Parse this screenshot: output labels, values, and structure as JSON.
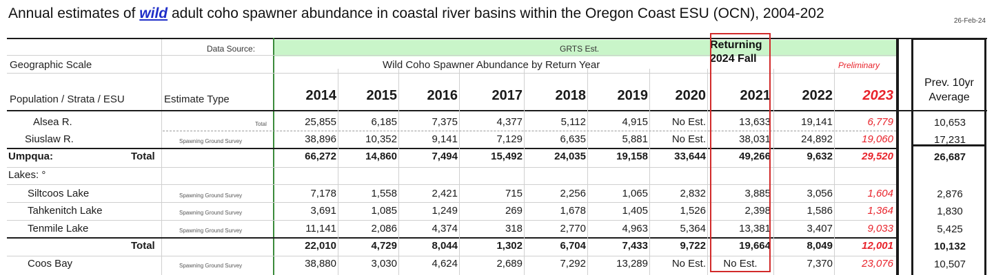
{
  "title": {
    "prefix": "Annual estimates of ",
    "wild": "wild",
    "rest": " adult coho spawner abundance in coastal river basins within the Oregon Coast ESU (OCN), 2004-202",
    "date": "26-Feb-24"
  },
  "header": {
    "data_source_label": "Data Source:",
    "grts": "GRTS Est.",
    "geographic_scale": "Geographic Scale",
    "abundance_label": "Wild Coho Spawner Abundance by Return Year",
    "returning_line1": "Returning",
    "returning_line2": "2024 Fall",
    "preliminary": "Preliminary",
    "population_label": "Population / Strata / ESU",
    "estimate_type": "Estimate Type",
    "avg_line1": "Prev. 10yr",
    "avg_line2": "Average",
    "years": [
      "2014",
      "2015",
      "2016",
      "2017",
      "2018",
      "2019",
      "2020",
      "2021",
      "2022",
      "2023"
    ]
  },
  "rows": [
    {
      "label": "Alsea R.",
      "source": "Total",
      "values": [
        "25,855",
        "6,185",
        "7,375",
        "4,377",
        "5,112",
        "4,915",
        "No Est.",
        "13,633",
        "19,141",
        "6,779"
      ],
      "avg": "10,653"
    },
    {
      "label": "Siuslaw R.",
      "source": "Spawning Ground Survey",
      "values": [
        "38,896",
        "10,352",
        "9,141",
        "7,129",
        "6,635",
        "5,881",
        "No Est.",
        "38,031",
        "24,892",
        "19,060"
      ],
      "avg": "17,231"
    },
    {
      "label": "Umpqua:",
      "label2": "Total",
      "source": "",
      "values": [
        "66,272",
        "14,860",
        "7,494",
        "15,492",
        "24,035",
        "19,158",
        "33,644",
        "49,266",
        "9,632",
        "29,520"
      ],
      "avg": "26,687"
    },
    {
      "label": "Lakes: °",
      "source": "",
      "values": [],
      "avg": ""
    },
    {
      "label": "Siltcoos Lake",
      "source": "Spawning Ground Survey",
      "values": [
        "7,178",
        "1,558",
        "2,421",
        "715",
        "2,256",
        "1,065",
        "2,832",
        "3,885",
        "3,056",
        "1,604"
      ],
      "avg": "2,876"
    },
    {
      "label": "Tahkenitch Lake",
      "source": "Spawning Ground Survey",
      "values": [
        "3,691",
        "1,085",
        "1,249",
        "269",
        "1,678",
        "1,405",
        "1,526",
        "2,398",
        "1,586",
        "1,364"
      ],
      "avg": "1,830"
    },
    {
      "label": "Tenmile Lake",
      "source": "Spawning Ground Survey",
      "values": [
        "11,141",
        "2,086",
        "4,374",
        "318",
        "2,770",
        "4,963",
        "5,364",
        "13,381",
        "3,407",
        "9,033"
      ],
      "avg": "5,425"
    },
    {
      "label": "Total",
      "source": "",
      "values": [
        "22,010",
        "4,729",
        "8,044",
        "1,302",
        "6,704",
        "7,433",
        "9,722",
        "19,664",
        "8,049",
        "12,001"
      ],
      "avg": "10,132"
    },
    {
      "label": "Coos Bay",
      "source": "Spawning Ground Survey",
      "values": [
        "38,880",
        "3,030",
        "4,624",
        "2,689",
        "7,292",
        "13,289",
        "No Est.",
        "No Est.",
        "7,370",
        "23,076"
      ],
      "avg": "10,507"
    }
  ],
  "colors": {
    "accent_red": "#e8222a",
    "green_band": "#c9f5c9",
    "link_blue": "#1f2ec9"
  }
}
